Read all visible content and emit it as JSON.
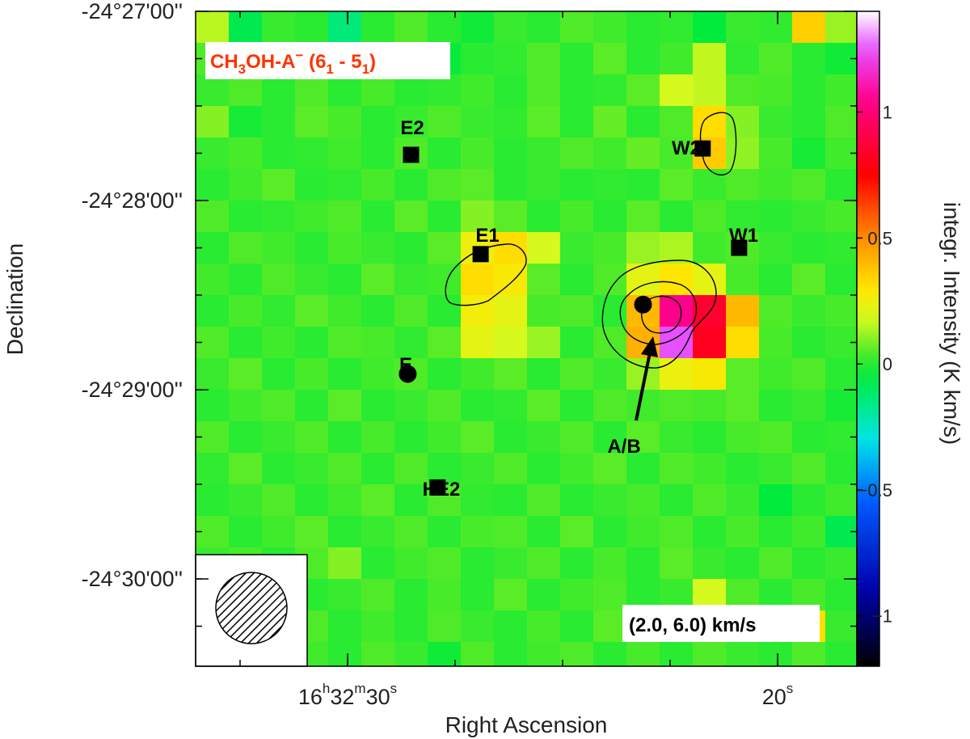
{
  "figure": {
    "molecule_title": {
      "prefix": "CH",
      "sub1": "3",
      "middle": "OH-A",
      "sup": "−",
      "trans_open": " (6",
      "sub2": "1",
      "trans_mid": " - 5",
      "sub3": "1",
      "trans_close": ")"
    },
    "velocity_range": "(2.0, 6.0) km/s",
    "colorbar_label": "integr. Intensity (K km/s)",
    "colorbar_ticks": [
      "1",
      "0.5",
      "0",
      "−0.5",
      "−1"
    ],
    "colorbar_tick_values": [
      1,
      0.5,
      0,
      -0.5,
      -1
    ],
    "colorbar_range": [
      -1.2,
      1.4
    ]
  },
  "chart_data": {
    "type": "heatmap",
    "title": "CH3OH-A− (61 - 51)",
    "xlabel": "Right Ascension",
    "ylabel": "Declination",
    "x_ticks": [
      {
        "h": "16",
        "hs": "h",
        "m": "32",
        "ms": "m",
        "s": "30",
        "ss": "s"
      },
      {
        "s": "20",
        "ss": "s"
      }
    ],
    "y_ticks": [
      "-24°27'00''",
      "-24°28'00''",
      "-24°29'00''",
      "-24°30'00''"
    ],
    "colorbar": {
      "label": "integr. Intensity (K km/s)",
      "ticks": [
        1,
        0.5,
        0,
        -0.5,
        -1
      ],
      "range": [
        -1.2,
        1.4
      ]
    },
    "grid": [
      [
        0.15,
        -0.08,
        0.02,
        0.0,
        -0.14,
        0.0,
        0.05,
        0.0,
        -0.03,
        0.02,
        0.0,
        0.05,
        0.03,
        0.0,
        0.01,
        -0.05,
        0.02,
        0.01,
        0.35,
        0.12
      ],
      [
        0.05,
        0.0,
        0.09,
        0.02,
        0.0,
        0.12,
        0.05,
        -0.04,
        0.0,
        0.01,
        0.05,
        0.0,
        0.06,
        0.0,
        0.03,
        0.16,
        0.01,
        0.05,
        0.0,
        -0.03
      ],
      [
        0.02,
        0.05,
        0.0,
        0.05,
        0.0,
        0.04,
        0.0,
        0.01,
        0.03,
        0.0,
        0.05,
        0.0,
        0.01,
        0.06,
        0.18,
        0.16,
        0.05,
        0.04,
        0.0,
        0.03
      ],
      [
        0.1,
        -0.02,
        0.0,
        0.06,
        0.04,
        0.0,
        0.02,
        0.05,
        0.02,
        0.01,
        0.06,
        0.0,
        0.07,
        0.0,
        0.05,
        0.32,
        0.1,
        0.02,
        0.0,
        0.05
      ],
      [
        0.02,
        0.04,
        0.0,
        0.01,
        0.03,
        0.0,
        0.05,
        0.0,
        0.04,
        0.0,
        0.02,
        0.05,
        0.03,
        0.07,
        0.04,
        0.36,
        0.11,
        0.04,
        -0.02,
        0.03
      ],
      [
        0.0,
        0.03,
        0.06,
        0.0,
        0.01,
        0.04,
        0.0,
        0.05,
        0.06,
        0.0,
        0.02,
        0.0,
        0.01,
        0.0,
        0.06,
        0.02,
        0.05,
        0.03,
        0.05,
        0.0
      ],
      [
        0.05,
        0.0,
        0.01,
        0.03,
        0.05,
        0.0,
        0.06,
        0.0,
        0.1,
        0.06,
        0.0,
        0.04,
        0.0,
        0.06,
        0.0,
        0.05,
        0.01,
        0.0,
        0.02,
        0.04
      ],
      [
        0.0,
        0.05,
        0.03,
        0.0,
        0.04,
        0.02,
        0.0,
        0.06,
        0.25,
        0.32,
        0.18,
        0.02,
        0.04,
        0.12,
        0.14,
        0.03,
        0.05,
        0.02,
        0.0,
        0.01
      ],
      [
        0.03,
        0.0,
        0.05,
        0.02,
        0.0,
        0.06,
        0.02,
        0.03,
        0.32,
        0.28,
        0.06,
        0.0,
        0.05,
        0.22,
        0.3,
        0.22,
        0.04,
        0.0,
        0.06,
        0.0
      ],
      [
        0.0,
        0.04,
        0.01,
        0.06,
        0.03,
        0.0,
        0.05,
        0.0,
        0.26,
        0.22,
        0.04,
        0.05,
        0.0,
        0.4,
        1.05,
        0.85,
        0.4,
        0.05,
        0.02,
        0.04
      ],
      [
        0.05,
        0.0,
        0.03,
        0.0,
        0.05,
        0.04,
        0.01,
        0.06,
        0.22,
        0.18,
        0.12,
        0.0,
        0.05,
        0.42,
        1.25,
        0.82,
        0.32,
        0.04,
        0.0,
        0.02
      ],
      [
        0.02,
        0.06,
        0.0,
        0.04,
        0.0,
        0.03,
        0.05,
        0.0,
        0.03,
        0.06,
        0.0,
        0.05,
        0.02,
        0.12,
        0.24,
        0.28,
        0.06,
        0.03,
        0.05,
        0.0
      ],
      [
        0.0,
        0.03,
        0.05,
        0.0,
        0.06,
        0.0,
        0.02,
        0.05,
        0.0,
        0.01,
        0.06,
        0.0,
        0.05,
        0.03,
        0.05,
        0.04,
        0.06,
        0.0,
        0.02,
        -0.02
      ],
      [
        0.05,
        0.0,
        0.02,
        0.05,
        0.0,
        0.04,
        0.0,
        0.03,
        0.06,
        0.0,
        0.02,
        0.05,
        0.0,
        0.06,
        0.02,
        0.0,
        0.04,
        0.05,
        0.0,
        0.01
      ],
      [
        0.01,
        0.06,
        0.0,
        0.02,
        0.05,
        0.0,
        0.05,
        0.0,
        0.02,
        0.05,
        0.0,
        0.03,
        0.06,
        0.0,
        0.05,
        0.03,
        0.0,
        0.02,
        0.05,
        0.0
      ],
      [
        0.0,
        0.02,
        0.05,
        0.0,
        0.03,
        0.06,
        0.0,
        0.05,
        0.01,
        0.0,
        0.05,
        0.0,
        0.02,
        0.04,
        0.0,
        0.05,
        0.02,
        -0.05,
        0.0,
        0.03
      ],
      [
        0.05,
        0.0,
        0.03,
        0.06,
        0.0,
        0.02,
        0.05,
        0.0,
        0.04,
        0.05,
        0.0,
        0.06,
        0.0,
        0.03,
        0.05,
        0.0,
        0.04,
        0.0,
        0.03,
        -0.08
      ],
      [
        0.02,
        0.04,
        0.0,
        0.05,
        0.1,
        0.0,
        0.03,
        0.05,
        0.0,
        0.02,
        0.05,
        0.0,
        0.04,
        0.0,
        0.06,
        0.02,
        0.0,
        0.05,
        0.0,
        0.02
      ],
      [
        0.0,
        0.03,
        0.06,
        0.0,
        0.02,
        0.05,
        0.0,
        0.04,
        0.0,
        0.06,
        0.0,
        0.03,
        0.05,
        0.0,
        0.02,
        0.18,
        0.05,
        0.0,
        0.04,
        0.0
      ],
      [
        0.04,
        0.0,
        0.02,
        0.05,
        0.0,
        0.03,
        0.0,
        0.05,
        0.02,
        0.0,
        0.04,
        0.0,
        0.06,
        0.0,
        0.05,
        0.0,
        0.03,
        0.05,
        0.32,
        0.02
      ],
      [
        0.0,
        0.05,
        0.0,
        0.03,
        0.0,
        0.05,
        0.02,
        -0.03,
        0.05,
        0.0,
        0.03,
        0.05,
        0.0,
        0.04,
        0.0,
        0.05,
        0.02,
        0.0,
        0.05,
        0.0
      ]
    ],
    "sources": [
      {
        "name": "E2",
        "marker": "square",
        "ra_col": 6.5,
        "dec_row": 4.55
      },
      {
        "name": "W2",
        "marker": "square",
        "ra_col": 15.3,
        "dec_row": 4.35
      },
      {
        "name": "E1",
        "marker": "square",
        "ra_col": 8.6,
        "dec_row": 7.7
      },
      {
        "name": "W1",
        "marker": "square",
        "ra_col": 16.4,
        "dec_row": 7.5
      },
      {
        "name": "A/B",
        "marker": "circle",
        "ra_col": 13.5,
        "dec_row": 9.3
      },
      {
        "name": "E",
        "marker": "circle",
        "ra_col": 6.4,
        "dec_row": 11.5
      },
      {
        "name": "HE2",
        "marker": "square",
        "ra_col": 7.3,
        "dec_row": 15.1
      }
    ]
  }
}
